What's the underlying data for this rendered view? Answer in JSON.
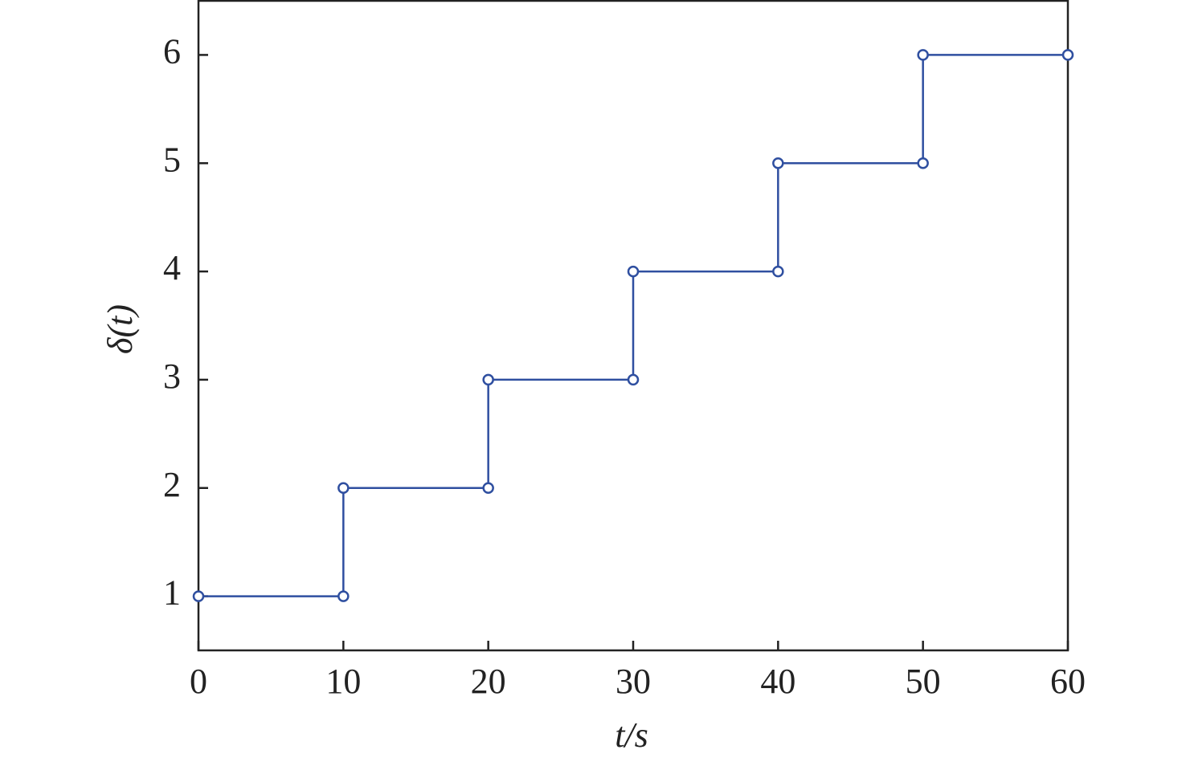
{
  "chart_data": {
    "type": "line",
    "xlabel": "t/s",
    "ylabel": "δ(t)",
    "x": [
      0,
      10,
      10,
      20,
      20,
      30,
      30,
      40,
      40,
      50,
      50,
      60
    ],
    "values": [
      1,
      1,
      2,
      2,
      3,
      3,
      4,
      4,
      5,
      5,
      6,
      6
    ],
    "color": "#2f4fa0",
    "marker": "circle",
    "xlim": [
      0,
      60
    ],
    "xticks": [
      0,
      10,
      20,
      30,
      40,
      50,
      60
    ],
    "ylim": [
      0.5,
      6.5
    ],
    "yticks": [
      1,
      2,
      3,
      4,
      5,
      6
    ],
    "grid": false
  }
}
